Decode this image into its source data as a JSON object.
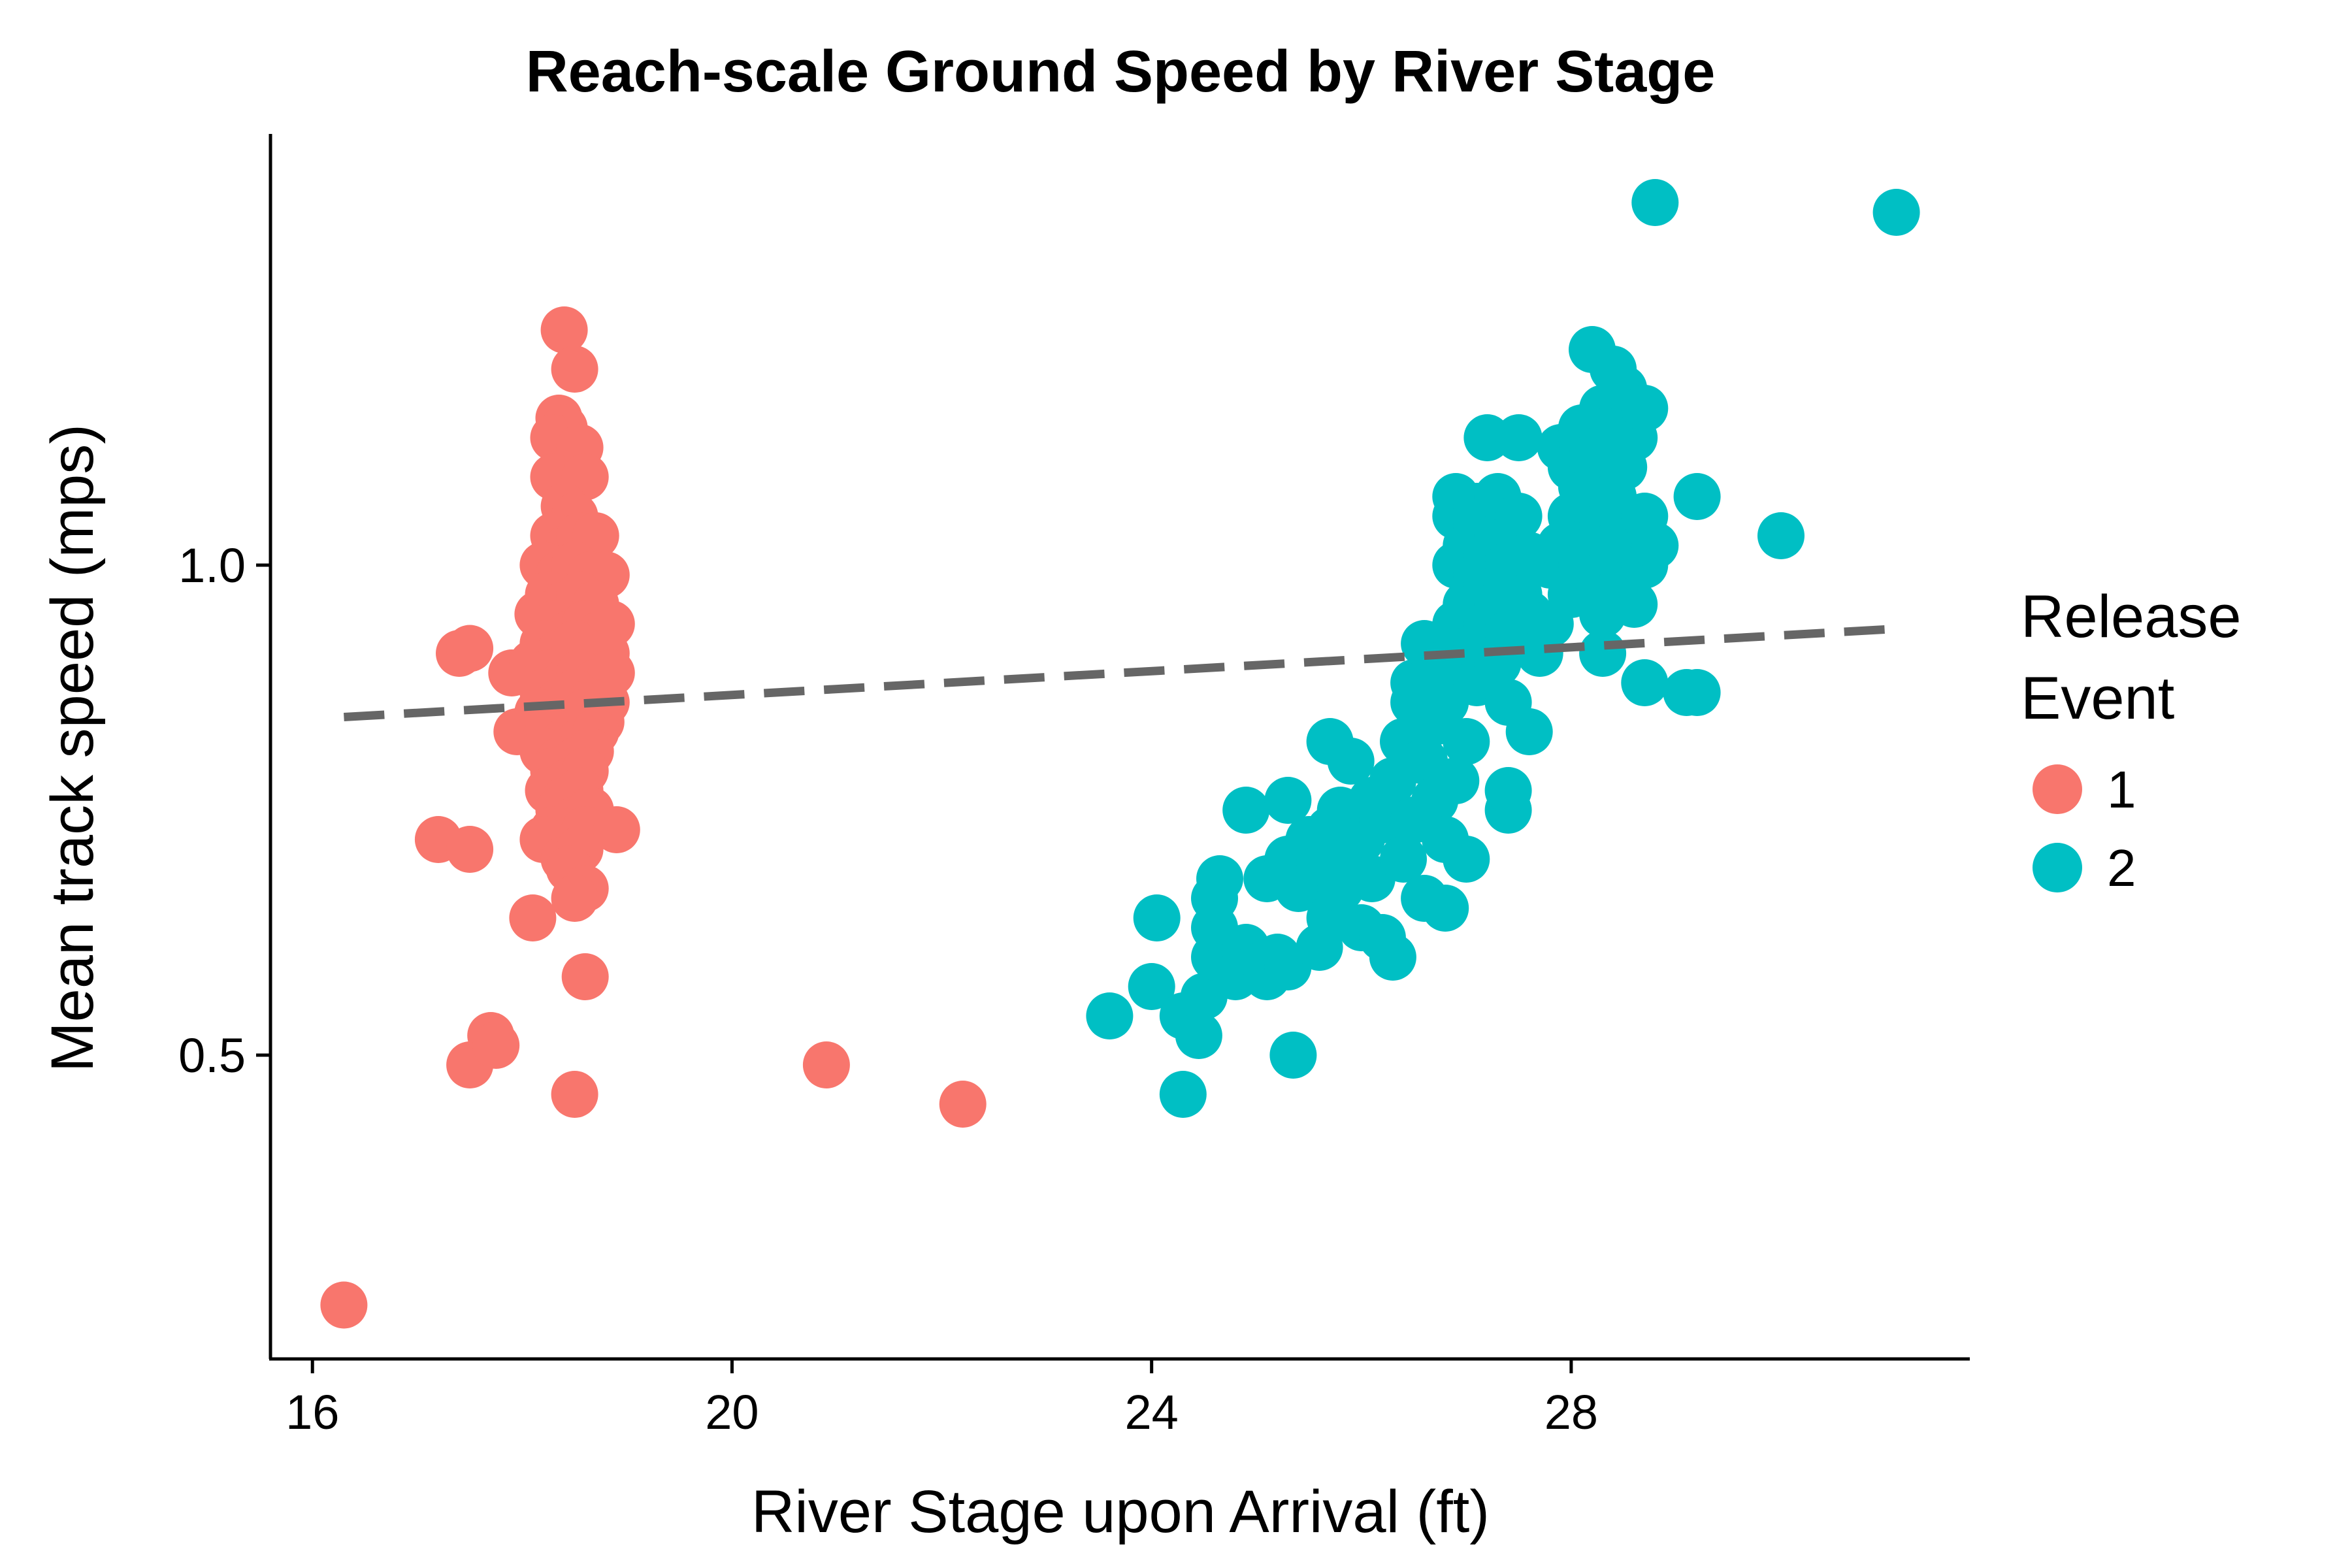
{
  "chart_data": {
    "type": "scatter",
    "title": "Reach-scale Ground Speed by River Stage",
    "xlabel": "River Stage upon Arrival (ft)",
    "ylabel": "Mean track speed (mps)",
    "xlim": [
      15.6,
      31.8
    ],
    "ylim": [
      0.19,
      1.44
    ],
    "xticks": [
      16,
      20,
      24,
      28
    ],
    "xtick_labels": [
      "16",
      "20",
      "24",
      "28"
    ],
    "yticks": [
      0.5,
      1.0
    ],
    "ytick_labels": [
      "0.5",
      "1.0"
    ],
    "grid": false,
    "legend": {
      "title_lines": [
        "Release",
        "Event"
      ],
      "placement": "right"
    },
    "trend_line": {
      "style": "dashed",
      "color": "#666666",
      "x": [
        16.3,
        31.1
      ],
      "y": [
        0.845,
        0.935
      ]
    },
    "series": [
      {
        "name": "1",
        "color": "#F8766D",
        "points": [
          [
            16.3,
            0.245
          ],
          [
            17.2,
            0.72
          ],
          [
            17.5,
            0.71
          ],
          [
            17.4,
            0.91
          ],
          [
            17.5,
            0.915
          ],
          [
            17.5,
            0.49
          ],
          [
            17.7,
            0.52
          ],
          [
            17.75,
            0.51
          ],
          [
            17.9,
            0.89
          ],
          [
            17.95,
            0.83
          ],
          [
            18.1,
            0.64
          ],
          [
            18.4,
            1.24
          ],
          [
            18.5,
            1.2
          ],
          [
            18.35,
            1.15
          ],
          [
            18.4,
            1.14
          ],
          [
            18.3,
            1.13
          ],
          [
            18.45,
            1.1
          ],
          [
            18.55,
            1.12
          ],
          [
            18.3,
            1.09
          ],
          [
            18.6,
            1.09
          ],
          [
            18.4,
            1.06
          ],
          [
            18.5,
            1.05
          ],
          [
            18.3,
            1.03
          ],
          [
            18.45,
            1.02
          ],
          [
            18.55,
            1.03
          ],
          [
            18.7,
            1.03
          ],
          [
            18.2,
            1.0
          ],
          [
            18.35,
            0.99
          ],
          [
            18.5,
            1.0
          ],
          [
            18.65,
            0.99
          ],
          [
            18.8,
            0.99
          ],
          [
            18.25,
            0.97
          ],
          [
            18.4,
            0.96
          ],
          [
            18.55,
            0.97
          ],
          [
            18.7,
            0.96
          ],
          [
            18.15,
            0.95
          ],
          [
            18.3,
            0.94
          ],
          [
            18.45,
            0.93
          ],
          [
            18.6,
            0.94
          ],
          [
            18.75,
            0.93
          ],
          [
            18.85,
            0.94
          ],
          [
            18.2,
            0.92
          ],
          [
            18.35,
            0.91
          ],
          [
            18.5,
            0.92
          ],
          [
            18.65,
            0.91
          ],
          [
            18.8,
            0.91
          ],
          [
            18.1,
            0.9
          ],
          [
            18.25,
            0.89
          ],
          [
            18.4,
            0.88
          ],
          [
            18.55,
            0.89
          ],
          [
            18.7,
            0.88
          ],
          [
            18.85,
            0.89
          ],
          [
            18.2,
            0.87
          ],
          [
            18.35,
            0.86
          ],
          [
            18.5,
            0.87
          ],
          [
            18.65,
            0.86
          ],
          [
            18.8,
            0.86
          ],
          [
            18.15,
            0.85
          ],
          [
            18.3,
            0.84
          ],
          [
            18.45,
            0.84
          ],
          [
            18.6,
            0.85
          ],
          [
            18.75,
            0.84
          ],
          [
            18.25,
            0.83
          ],
          [
            18.4,
            0.82
          ],
          [
            18.55,
            0.82
          ],
          [
            18.7,
            0.83
          ],
          [
            18.2,
            0.81
          ],
          [
            18.35,
            0.8
          ],
          [
            18.5,
            0.8
          ],
          [
            18.65,
            0.81
          ],
          [
            18.3,
            0.79
          ],
          [
            18.45,
            0.78
          ],
          [
            18.6,
            0.79
          ],
          [
            18.25,
            0.77
          ],
          [
            18.4,
            0.76
          ],
          [
            18.55,
            0.77
          ],
          [
            18.35,
            0.75
          ],
          [
            18.5,
            0.74
          ],
          [
            18.65,
            0.75
          ],
          [
            18.3,
            0.73
          ],
          [
            18.45,
            0.72
          ],
          [
            18.6,
            0.73
          ],
          [
            18.2,
            0.72
          ],
          [
            18.4,
            0.7
          ],
          [
            18.55,
            0.71
          ],
          [
            18.45,
            0.69
          ],
          [
            18.6,
            0.67
          ],
          [
            18.5,
            0.66
          ],
          [
            18.9,
            0.73
          ],
          [
            18.6,
            0.58
          ],
          [
            18.5,
            0.46
          ],
          [
            20.9,
            0.49
          ],
          [
            22.2,
            0.45
          ]
        ]
      },
      {
        "name": "2",
        "color": "#00BFC4",
        "points": [
          [
            23.6,
            0.54
          ],
          [
            24.0,
            0.57
          ],
          [
            24.05,
            0.64
          ],
          [
            24.3,
            0.54
          ],
          [
            24.3,
            0.46
          ],
          [
            24.45,
            0.52
          ],
          [
            24.5,
            0.56
          ],
          [
            24.6,
            0.6
          ],
          [
            24.6,
            0.63
          ],
          [
            24.6,
            0.66
          ],
          [
            24.65,
            0.68
          ],
          [
            24.8,
            0.58
          ],
          [
            24.9,
            0.61
          ],
          [
            25.0,
            0.59
          ],
          [
            25.1,
            0.58
          ],
          [
            25.2,
            0.6
          ],
          [
            25.3,
            0.59
          ],
          [
            24.9,
            0.75
          ],
          [
            25.1,
            0.68
          ],
          [
            25.3,
            0.7
          ],
          [
            25.3,
            0.76
          ],
          [
            25.35,
            0.5
          ],
          [
            25.4,
            0.67
          ],
          [
            25.5,
            0.72
          ],
          [
            25.6,
            0.61
          ],
          [
            25.6,
            0.69
          ],
          [
            25.7,
            0.64
          ],
          [
            25.7,
            0.73
          ],
          [
            25.7,
            0.82
          ],
          [
            25.8,
            0.67
          ],
          [
            25.8,
            0.75
          ],
          [
            25.9,
            0.8
          ],
          [
            25.9,
            0.7
          ],
          [
            26.0,
            0.63
          ],
          [
            26.0,
            0.72
          ],
          [
            26.1,
            0.76
          ],
          [
            26.1,
            0.68
          ],
          [
            26.2,
            0.62
          ],
          [
            26.2,
            0.74
          ],
          [
            26.3,
            0.6
          ],
          [
            26.3,
            0.78
          ],
          [
            26.4,
            0.7
          ],
          [
            26.4,
            0.82
          ],
          [
            26.5,
            0.74
          ],
          [
            26.5,
            0.88
          ],
          [
            26.5,
            0.86
          ],
          [
            26.6,
            0.66
          ],
          [
            26.6,
            0.8
          ],
          [
            26.6,
            0.92
          ],
          [
            26.7,
            0.76
          ],
          [
            26.7,
            0.84
          ],
          [
            26.8,
            0.65
          ],
          [
            26.8,
            0.72
          ],
          [
            26.8,
            0.86
          ],
          [
            26.8,
            0.9
          ],
          [
            26.9,
            0.78
          ],
          [
            26.9,
            0.94
          ],
          [
            27.0,
            0.7
          ],
          [
            27.0,
            0.82
          ],
          [
            27.0,
            0.96
          ],
          [
            26.9,
            1.0
          ],
          [
            26.9,
            1.05
          ],
          [
            26.9,
            1.07
          ],
          [
            27.0,
            1.02
          ],
          [
            27.1,
            0.88
          ],
          [
            27.1,
            0.92
          ],
          [
            27.1,
            0.99
          ],
          [
            27.1,
            1.04
          ],
          [
            27.1,
            1.06
          ],
          [
            27.2,
            1.13
          ],
          [
            27.2,
            0.94
          ],
          [
            27.2,
            0.98
          ],
          [
            27.2,
            1.01
          ],
          [
            27.3,
            0.9
          ],
          [
            27.3,
            0.96
          ],
          [
            27.3,
            1.03
          ],
          [
            27.3,
            1.07
          ],
          [
            27.4,
            0.75
          ],
          [
            27.4,
            0.77
          ],
          [
            27.4,
            0.86
          ],
          [
            27.4,
            0.93
          ],
          [
            27.4,
            1.0
          ],
          [
            27.5,
            0.97
          ],
          [
            27.5,
            1.05
          ],
          [
            27.5,
            1.13
          ],
          [
            27.6,
            0.83
          ],
          [
            27.6,
            0.95
          ],
          [
            27.6,
            1.01
          ],
          [
            27.7,
            0.91
          ],
          [
            27.8,
            1.0
          ],
          [
            27.8,
            0.94
          ],
          [
            27.9,
            1.02
          ],
          [
            27.9,
            1.12
          ],
          [
            28.0,
            0.97
          ],
          [
            28.0,
            1.01
          ],
          [
            28.0,
            1.05
          ],
          [
            28.0,
            1.1
          ],
          [
            28.1,
            1.0
          ],
          [
            28.1,
            1.08
          ],
          [
            28.1,
            1.14
          ],
          [
            28.2,
            1.03
          ],
          [
            28.2,
            1.06
          ],
          [
            28.2,
            1.11
          ],
          [
            28.2,
            1.22
          ],
          [
            28.3,
            0.95
          ],
          [
            28.3,
            0.99
          ],
          [
            28.3,
            1.04
          ],
          [
            28.3,
            1.08
          ],
          [
            28.3,
            1.12
          ],
          [
            28.3,
            1.16
          ],
          [
            28.3,
            0.91
          ],
          [
            28.4,
            0.97
          ],
          [
            28.4,
            1.02
          ],
          [
            28.4,
            1.07
          ],
          [
            28.4,
            1.14
          ],
          [
            28.4,
            1.2
          ],
          [
            28.5,
            0.98
          ],
          [
            28.5,
            1.05
          ],
          [
            28.5,
            1.1
          ],
          [
            28.5,
            1.18
          ],
          [
            28.6,
            0.96
          ],
          [
            28.6,
            1.03
          ],
          [
            28.6,
            1.13
          ],
          [
            28.7,
            1.0
          ],
          [
            28.7,
            1.05
          ],
          [
            28.7,
            1.16
          ],
          [
            28.7,
            0.88
          ],
          [
            28.8,
            1.02
          ],
          [
            28.8,
            1.37
          ],
          [
            29.2,
            1.07
          ],
          [
            29.1,
            0.87
          ],
          [
            29.2,
            0.87
          ],
          [
            30.0,
            1.03
          ],
          [
            31.1,
            1.36
          ]
        ]
      }
    ]
  }
}
